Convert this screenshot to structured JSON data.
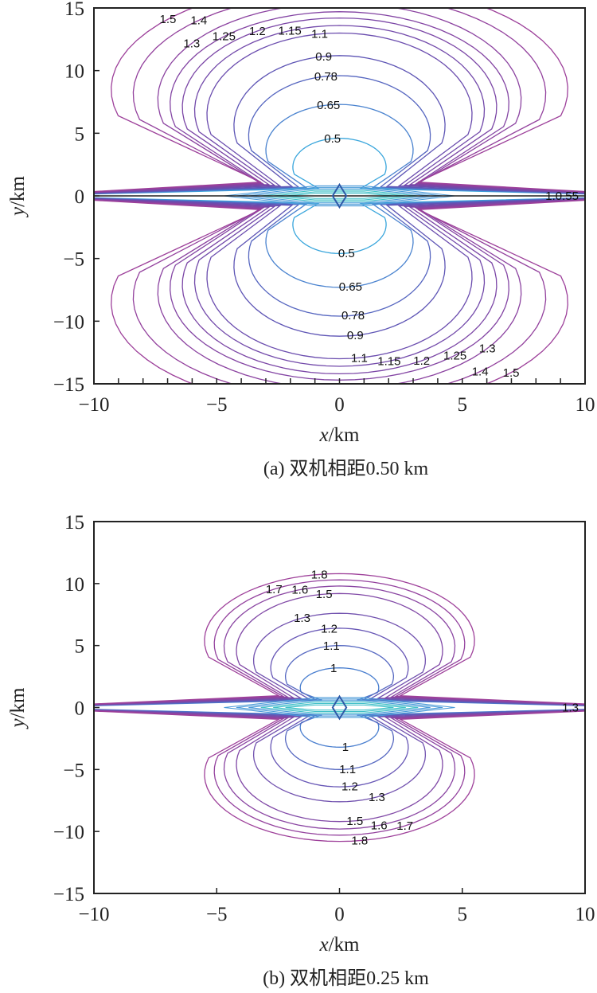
{
  "chart_data": [
    {
      "type": "contour",
      "caption": "(a) 双机相距0.50 km",
      "xlabel_var": "x",
      "xlabel_unit": "/km",
      "ylabel_var": "y",
      "ylabel_unit": "/km",
      "xlim": [
        -10,
        10
      ],
      "ylim": [
        -15,
        15
      ],
      "xticks": [
        "−10",
        "−5",
        "0",
        "5",
        "10"
      ],
      "yticks": [
        "15",
        "10",
        "5",
        "0",
        "−5",
        "−10",
        "−15"
      ],
      "minor_xticks_every": 1,
      "axis_line_y0": true,
      "levels": [
        {
          "label": "0.5",
          "w": 1.9,
          "h": 4.6,
          "color": "#3aa6dc"
        },
        {
          "label": "0.65",
          "w": 3.0,
          "h": 7.3,
          "color": "#4a83cf"
        },
        {
          "label": "0.78",
          "w": 3.7,
          "h": 9.6,
          "color": "#5666c0"
        },
        {
          "label": "0.9",
          "w": 4.3,
          "h": 11.2,
          "color": "#5e55b5"
        },
        {
          "label": "1.1",
          "w": 5.4,
          "h": 13.0,
          "color": "#6a4cae"
        },
        {
          "label": "1.15",
          "w": 5.9,
          "h": 13.6,
          "color": "#7249aa"
        },
        {
          "label": "1.2",
          "w": 6.4,
          "h": 14.2,
          "color": "#7b46a6"
        },
        {
          "label": "1.25",
          "w": 6.9,
          "h": 14.7,
          "color": "#8344a3"
        },
        {
          "label": "1.3",
          "w": 7.4,
          "h": 15.4,
          "color": "#8b42a0"
        },
        {
          "label": "1.4",
          "w": 8.4,
          "h": 16.2,
          "color": "#93419d"
        },
        {
          "label": "1.5",
          "w": 9.3,
          "h": 17.0,
          "color": "#9d409a"
        }
      ],
      "center_marker": "diamond",
      "end_label": "1.0.55"
    },
    {
      "type": "contour",
      "caption": "(b) 双机相距0.25 km",
      "xlabel_var": "x",
      "xlabel_unit": "/km",
      "ylabel_var": "y",
      "ylabel_unit": "/km",
      "xlim": [
        -10,
        10
      ],
      "ylim": [
        -15,
        15
      ],
      "xticks": [
        "−10",
        "−5",
        "0",
        "5",
        "10"
      ],
      "yticks": [
        "15",
        "10",
        "5",
        "0",
        "−5",
        "−10",
        "−15"
      ],
      "minor_xticks_every": 5,
      "axis_line_y0": false,
      "levels": [
        {
          "label": "1",
          "w": 1.6,
          "h": 3.2,
          "color": "#4a7fcf"
        },
        {
          "label": "1.1",
          "w": 2.2,
          "h": 5.0,
          "color": "#5668c1"
        },
        {
          "label": "1.2",
          "w": 2.8,
          "h": 6.4,
          "color": "#6655b5"
        },
        {
          "label": "1.3",
          "w": 3.5,
          "h": 7.6,
          "color": "#7050ae"
        },
        {
          "label": "1.5",
          "w": 4.2,
          "h": 9.2,
          "color": "#8048a6"
        },
        {
          "label": "1.6",
          "w": 4.7,
          "h": 9.8,
          "color": "#8a45a2"
        },
        {
          "label": "1.7",
          "w": 5.1,
          "h": 10.3,
          "color": "#94429e"
        },
        {
          "label": "1.8",
          "w": 5.5,
          "h": 10.8,
          "color": "#9e409a"
        }
      ],
      "center_marker": "diamond",
      "end_label": "1.3"
    }
  ]
}
